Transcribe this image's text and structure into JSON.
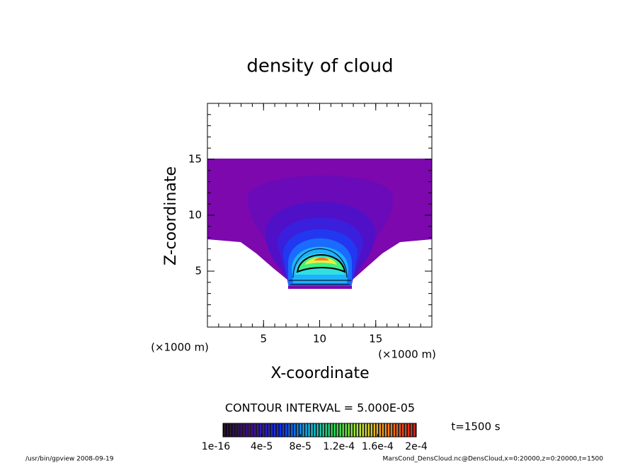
{
  "chart_data": {
    "type": "contour",
    "title": "density of cloud",
    "x_label": "X-coordinate",
    "y_label": "Z-coordinate",
    "x_unit": "(×1000 m)",
    "y_unit": "(×1000 m)",
    "xlim": [
      0,
      20
    ],
    "ylim": [
      0,
      20
    ],
    "xticks": [
      5,
      10,
      15
    ],
    "yticks": [
      5,
      10,
      15
    ],
    "contour_interval": "CONTOUR INTERVAL = 5.000E-05",
    "colorbar_ticks": [
      {
        "value": 1e-16,
        "label": "1e-16"
      },
      {
        "value": 4e-05,
        "label": "4e-5"
      },
      {
        "value": 8e-05,
        "label": "8e-5"
      },
      {
        "value": 0.00012,
        "label": "1.2e-4"
      },
      {
        "value": 0.00016,
        "label": "1.6e-4"
      },
      {
        "value": 0.0002,
        "label": "2e-4"
      }
    ],
    "time_label": "t=1500 s",
    "footer_left": "/usr/bin/gpview  2008-09-19",
    "footer_right": "MarsCond_DensCloud.nc@DensCloud,x=0:20000,z=0:20000,t=1500"
  }
}
